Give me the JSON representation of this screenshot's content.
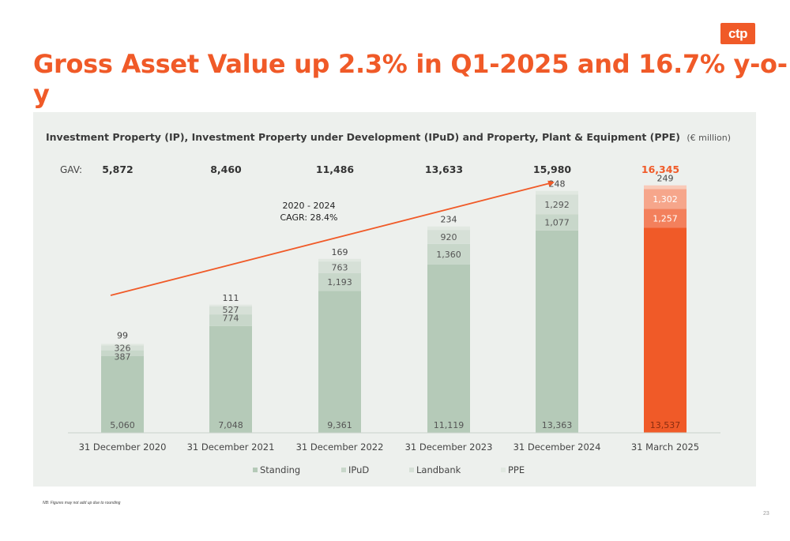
{
  "logo_text": "ctp",
  "title": "Gross Asset Value up 2.3% in Q1-2025 and 16.7% y-o-y",
  "footnote": "NB: Figures may not add up due to rounding",
  "page_number": "23",
  "colors": {
    "accent": "#f05a28",
    "standing": "#b5cab8",
    "ipud": "#c8d7ca",
    "landbank": "#d6e0d7",
    "ppe": "#e1e8e1",
    "highlight_standing": "#f05a28",
    "highlight_ipud": "#f3805c",
    "highlight_landbank": "#f6a68b",
    "highlight_ppe": "#f9cab8",
    "panel_bg": "#edf0ed"
  },
  "chart_data": {
    "type": "bar",
    "stacked": true,
    "title": "Investment Property (IP), Investment Property under Development (IPuD) and Property, Plant & Equipment (PPE)",
    "title_unit": "(€ million)",
    "gav_label": "GAV:",
    "categories": [
      "31 December 2020",
      "31 December 2021",
      "31 December 2022",
      "31 December 2023",
      "31 December 2024",
      "31 March 2025"
    ],
    "gav_values": [
      "5,872",
      "8,460",
      "11,486",
      "13,633",
      "15,980",
      "16,345"
    ],
    "series": [
      {
        "name": "Standing",
        "values": [
          5060,
          7048,
          9361,
          11119,
          13363,
          13537
        ],
        "labels": [
          "5,060",
          "7,048",
          "9,361",
          "11,119",
          "13,363",
          "13,537"
        ]
      },
      {
        "name": "IPuD",
        "values": [
          387,
          774,
          1193,
          1360,
          1077,
          1257
        ],
        "labels": [
          "387",
          "774",
          "1,193",
          "1,360",
          "1,077",
          "1,257"
        ]
      },
      {
        "name": "Landbank",
        "values": [
          326,
          527,
          763,
          920,
          1292,
          1302
        ],
        "labels": [
          "326",
          "527",
          "763",
          "920",
          "1,292",
          "1,302"
        ]
      },
      {
        "name": "PPE",
        "values": [
          99,
          111,
          169,
          234,
          248,
          249
        ],
        "labels": [
          "99",
          "111",
          "169",
          "234",
          "248",
          "249"
        ]
      }
    ],
    "highlight_index": 5,
    "annotation": {
      "line1": "2020 - 2024",
      "line2": "CAGR: 28.4%"
    },
    "legend_position": "bottom",
    "grid": false,
    "ylim": [
      0,
      18000
    ]
  }
}
